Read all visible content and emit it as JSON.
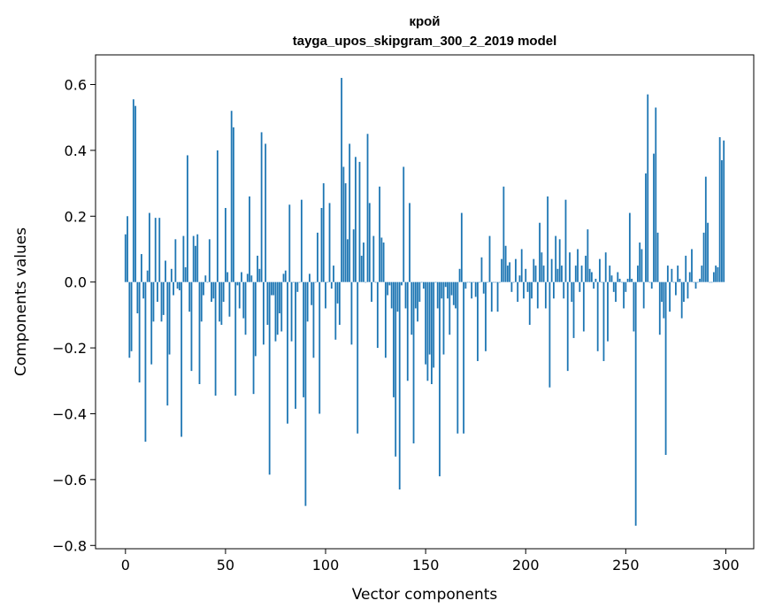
{
  "chart_data": {
    "type": "bar",
    "title": "крой",
    "subtitle": "tayga_upos_skipgram_300_2_2019 model",
    "xlabel": "Vector components",
    "ylabel": "Components values",
    "xlim": [
      -14.95,
      313.95
    ],
    "ylim": [
      -0.81,
      0.69
    ],
    "xticks": [
      0,
      50,
      100,
      150,
      200,
      250,
      300
    ],
    "yticks": [
      -0.8,
      -0.6,
      -0.4,
      -0.2,
      0.0,
      0.2,
      0.4,
      0.6
    ],
    "xtick_labels": [
      "0",
      "50",
      "100",
      "150",
      "200",
      "250",
      "300"
    ],
    "ytick_labels": [
      "−0.8",
      "−0.6",
      "−0.4",
      "−0.2",
      "0.0",
      "0.2",
      "0.4",
      "0.6"
    ],
    "bar_color": "#1f77b4",
    "grid": false,
    "values": [
      0.145,
      0.2,
      -0.23,
      -0.21,
      0.555,
      0.535,
      -0.095,
      -0.305,
      0.085,
      -0.05,
      -0.485,
      0.035,
      0.21,
      -0.25,
      -0.12,
      0.195,
      -0.06,
      0.195,
      -0.12,
      -0.1,
      0.065,
      -0.375,
      -0.22,
      0.04,
      -0.04,
      0.13,
      -0.02,
      -0.025,
      -0.47,
      0.14,
      0.045,
      0.385,
      -0.09,
      -0.27,
      0.14,
      0.11,
      0.145,
      -0.31,
      -0.12,
      -0.04,
      0.02,
      0.0,
      0.13,
      -0.06,
      -0.05,
      -0.345,
      0.4,
      -0.12,
      -0.13,
      -0.06,
      0.225,
      0.03,
      -0.105,
      0.52,
      0.47,
      -0.345,
      -0.01,
      -0.08,
      0.03,
      -0.11,
      -0.16,
      0.025,
      0.26,
      0.02,
      -0.34,
      -0.225,
      0.08,
      0.04,
      0.455,
      -0.19,
      0.42,
      -0.13,
      -0.585,
      -0.04,
      -0.04,
      -0.18,
      -0.16,
      -0.095,
      -0.15,
      0.025,
      0.035,
      -0.43,
      0.235,
      -0.18,
      0.0,
      -0.385,
      -0.03,
      0.0,
      0.25,
      -0.35,
      -0.68,
      -0.12,
      0.025,
      -0.07,
      -0.23,
      0.0,
      0.15,
      -0.4,
      0.225,
      0.3,
      -0.08,
      0.0,
      0.24,
      -0.02,
      0.05,
      -0.175,
      -0.065,
      -0.13,
      0.62,
      0.35,
      0.3,
      0.13,
      0.42,
      -0.19,
      0.16,
      0.38,
      -0.46,
      0.365,
      0.08,
      0.12,
      0.0,
      0.45,
      0.24,
      -0.06,
      0.14,
      0.0,
      -0.2,
      0.29,
      0.135,
      0.12,
      -0.23,
      -0.04,
      -0.01,
      -0.08,
      -0.35,
      -0.53,
      -0.09,
      -0.63,
      -0.01,
      0.35,
      -0.08,
      -0.3,
      0.24,
      -0.16,
      -0.49,
      -0.08,
      -0.12,
      -0.06,
      0.0,
      -0.02,
      -0.25,
      -0.3,
      -0.22,
      -0.31,
      -0.26,
      0.0,
      -0.08,
      -0.59,
      -0.05,
      -0.22,
      -0.015,
      -0.05,
      -0.16,
      -0.04,
      -0.07,
      -0.08,
      -0.46,
      0.04,
      0.21,
      -0.46,
      -0.02,
      0.0,
      0.0,
      -0.05,
      0.0,
      -0.045,
      -0.24,
      0.0,
      0.075,
      -0.035,
      -0.21,
      0.0,
      0.14,
      -0.09,
      0.0,
      0.0,
      -0.09,
      0.0,
      0.07,
      0.29,
      0.11,
      0.05,
      0.06,
      -0.03,
      0.0,
      0.07,
      -0.06,
      0.02,
      0.1,
      -0.05,
      0.04,
      -0.03,
      -0.13,
      -0.05,
      0.07,
      0.05,
      -0.08,
      0.18,
      0.09,
      0.05,
      -0.08,
      0.26,
      -0.32,
      0.07,
      -0.05,
      0.14,
      0.04,
      0.13,
      0.05,
      -0.05,
      0.25,
      -0.27,
      0.09,
      -0.06,
      -0.17,
      0.05,
      0.1,
      -0.03,
      0.05,
      -0.15,
      0.08,
      0.16,
      0.04,
      0.03,
      -0.02,
      0.01,
      -0.21,
      0.07,
      0.0,
      -0.24,
      0.09,
      -0.18,
      0.05,
      0.02,
      -0.03,
      -0.06,
      0.03,
      0.01,
      0.0,
      -0.08,
      -0.03,
      0.01,
      0.21,
      0.01,
      -0.15,
      -0.74,
      0.05,
      0.12,
      0.1,
      -0.08,
      0.33,
      0.57,
      0.0,
      -0.02,
      0.39,
      0.53,
      0.15,
      -0.16,
      -0.06,
      -0.11,
      -0.525,
      0.05,
      -0.09,
      0.04,
      0.0,
      -0.04,
      0.05,
      0.01,
      -0.11,
      -0.06,
      0.08,
      -0.05,
      0.03,
      0.1,
      0.0,
      -0.02,
      0.0,
      0.01,
      0.05,
      0.15,
      0.32,
      0.18,
      0.0,
      0.0,
      0.03,
      0.05,
      0.045,
      0.44,
      0.37,
      0.43
    ]
  }
}
